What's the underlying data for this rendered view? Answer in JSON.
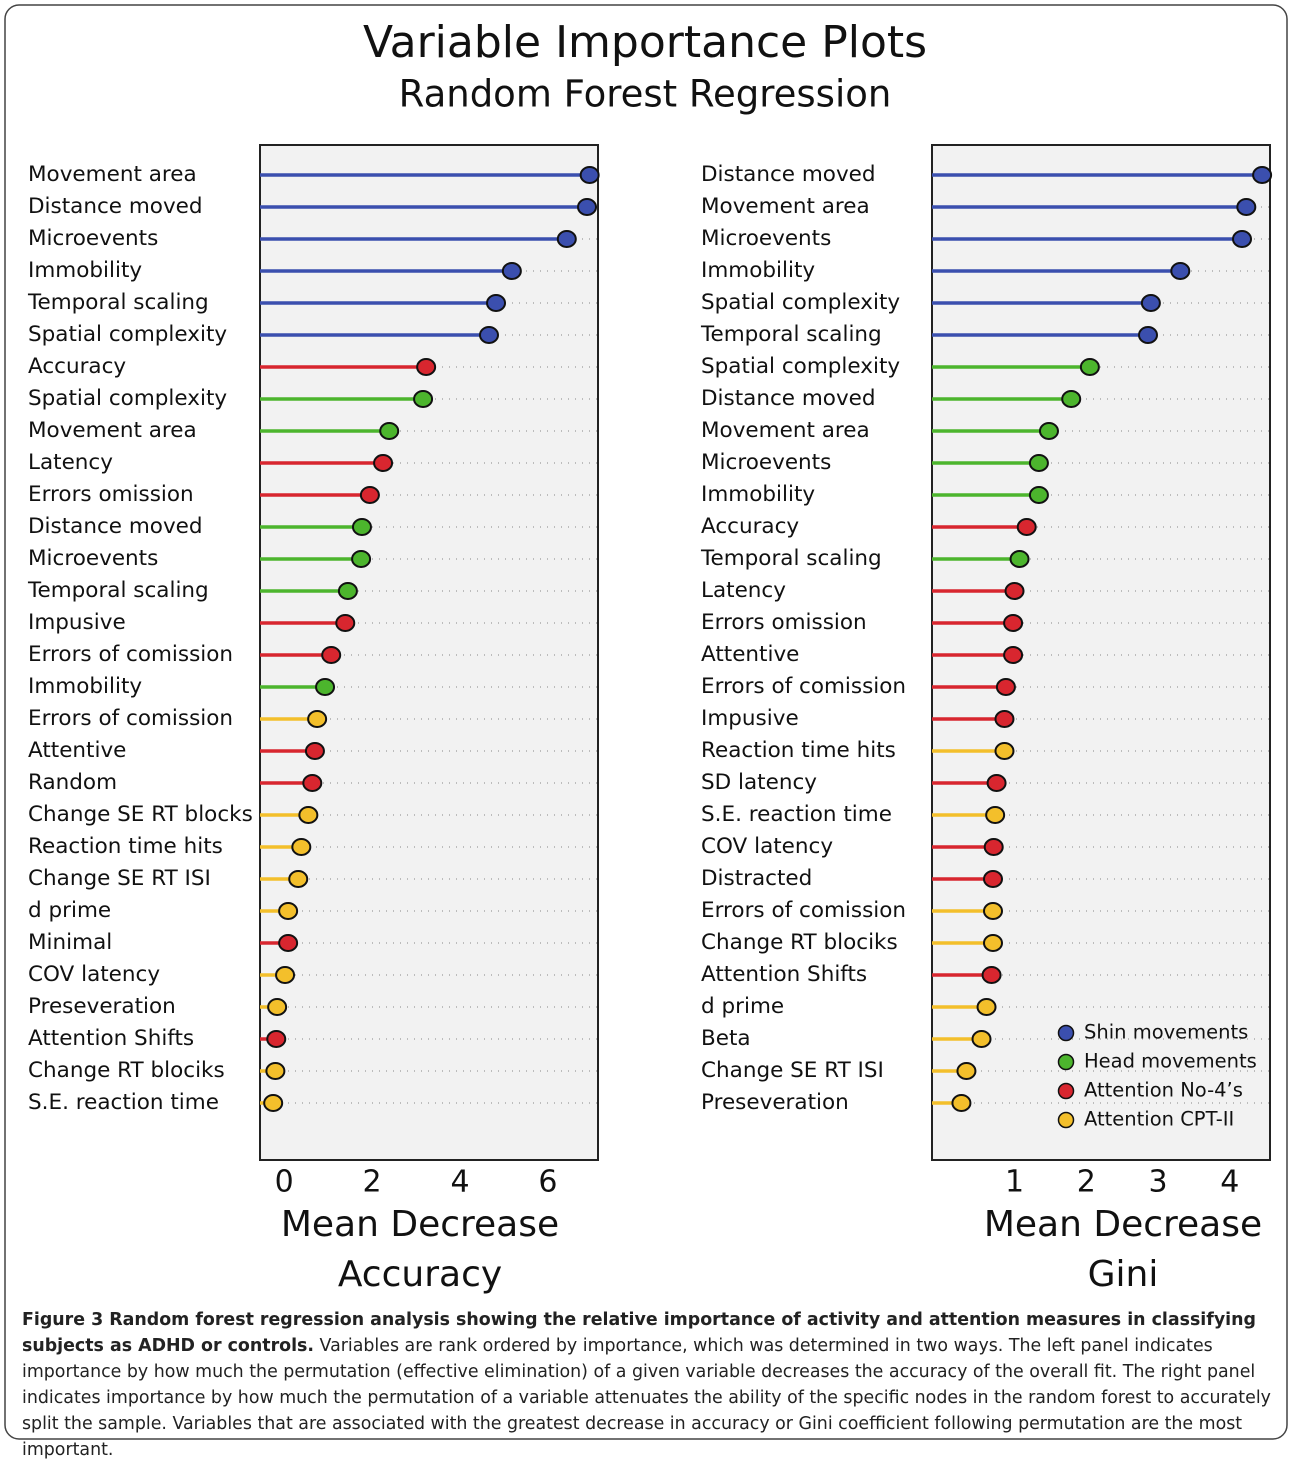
{
  "header": {
    "title": "Variable Importance Plots",
    "subtitle": "Random Forest Regression"
  },
  "chart_data": [
    {
      "type": "lollipop",
      "xlabel": "Mean Decrease Accuracy",
      "categories": [
        "Movement area",
        "Distance moved",
        "Microevents",
        "Immobility",
        "Temporal scaling",
        "Spatial complexity",
        "Accuracy",
        "Spatial complexity",
        "Movement area",
        "Latency",
        "Errors omission",
        "Distance moved",
        "Microevents",
        "Temporal scaling",
        "Impusive",
        "Errors of comission",
        "Immobility",
        "Errors of comission",
        "Attentive",
        "Random",
        "Change SE RT blocks",
        "Reaction time hits",
        "Change SE RT ISI",
        "d prime",
        "Minimal",
        "COV latency",
        "Preseveration",
        "Attention Shifts",
        "Change RT blociks",
        "S.E. reaction time"
      ],
      "series": [
        {
          "color": "#3b4fae",
          "values": [
            6.95,
            6.89,
            6.43,
            5.18,
            4.82,
            4.66,
            null,
            null,
            null,
            null,
            null,
            null,
            null,
            null,
            null,
            null,
            null,
            null,
            null,
            null,
            null,
            null,
            null,
            null,
            null,
            null,
            null,
            null,
            null,
            null
          ]
        },
        {
          "color": "#4cb52d",
          "values": [
            null,
            null,
            null,
            null,
            null,
            null,
            null,
            3.16,
            2.39,
            null,
            null,
            1.77,
            1.75,
            1.45,
            null,
            null,
            0.93,
            null,
            null,
            null,
            null,
            null,
            null,
            null,
            null,
            null,
            null,
            null,
            null,
            null
          ]
        },
        {
          "color": "#d8262f",
          "values": [
            null,
            null,
            null,
            null,
            null,
            null,
            3.23,
            null,
            null,
            2.25,
            1.95,
            null,
            null,
            null,
            1.39,
            1.07,
            null,
            null,
            0.7,
            0.64,
            null,
            null,
            null,
            null,
            0.09,
            null,
            null,
            -0.18,
            null,
            null
          ]
        },
        {
          "color": "#f3bf2b",
          "values": [
            null,
            null,
            null,
            null,
            null,
            null,
            null,
            null,
            null,
            null,
            null,
            null,
            null,
            null,
            null,
            null,
            null,
            0.75,
            null,
            null,
            0.55,
            0.39,
            0.32,
            0.09,
            null,
            0.02,
            -0.16,
            null,
            -0.2,
            -0.25
          ]
        }
      ],
      "xlim": [
        -0.55,
        7.14
      ],
      "xticks": [
        0,
        2,
        4,
        6
      ],
      "grid": true
    },
    {
      "type": "lollipop",
      "xlabel": "Mean Decrease Gini",
      "categories": [
        "Distance moved",
        "Movement area",
        "Microevents",
        "Immobility",
        "Spatial complexity",
        "Temporal scaling",
        "Spatial complexity",
        "Distance moved",
        "Movement area",
        "Microevents",
        "Immobility",
        "Accuracy",
        "Temporal scaling",
        "Latency",
        "Errors omission",
        "Attentive",
        "Errors of comission",
        "Impusive",
        "Reaction time hits",
        "SD latency",
        "S.E. reaction time",
        "COV latency",
        "Distracted",
        "Errors of comission",
        "Change RT blociks",
        "Attention Shifts",
        "d prime",
        "Beta",
        "Change SE RT ISI",
        "Preseveration"
      ],
      "series": [
        {
          "name": "Shin movements",
          "color": "#3b4fae",
          "values": [
            4.45,
            4.23,
            4.17,
            3.31,
            2.9,
            2.86,
            null,
            null,
            null,
            null,
            null,
            null,
            null,
            null,
            null,
            null,
            null,
            null,
            null,
            null,
            null,
            null,
            null,
            null,
            null,
            null,
            null,
            null,
            null,
            null
          ]
        },
        {
          "name": "Head movements",
          "color": "#4cb52d",
          "values": [
            null,
            null,
            null,
            null,
            null,
            null,
            2.05,
            1.79,
            1.48,
            1.34,
            1.34,
            null,
            1.07,
            null,
            null,
            null,
            null,
            null,
            null,
            null,
            null,
            null,
            null,
            null,
            null,
            null,
            null,
            null,
            null,
            null
          ]
        },
        {
          "name": "Attention No-4’s",
          "color": "#d8262f",
          "values": [
            null,
            null,
            null,
            null,
            null,
            null,
            null,
            null,
            null,
            null,
            null,
            1.17,
            null,
            1.0,
            0.98,
            0.98,
            0.88,
            0.86,
            null,
            0.75,
            null,
            0.71,
            0.7,
            null,
            null,
            0.68,
            null,
            null,
            null,
            null
          ]
        },
        {
          "name": "Attention CPT-II",
          "color": "#f3bf2b",
          "values": [
            null,
            null,
            null,
            null,
            null,
            null,
            null,
            null,
            null,
            null,
            null,
            null,
            null,
            null,
            null,
            null,
            null,
            null,
            0.86,
            null,
            0.73,
            null,
            null,
            0.7,
            0.7,
            null,
            0.61,
            0.54,
            0.33,
            0.26
          ]
        }
      ],
      "xlim": [
        -0.15,
        4.56
      ],
      "xticks": [
        1,
        2,
        3,
        4
      ],
      "grid": true,
      "legend": "bottom-right"
    }
  ],
  "caption": {
    "title": "Figure 3 Random forest regression analysis showing the relative importance of activity and attention measures in classifying subjects as ADHD or controls.",
    "text": "Variables are rank ordered by importance, which was determined in two ways. The left panel indicates importance by how much the permutation (effective elimination) of a given variable decreases the accuracy of the overall fit. The right panel indicates importance by how much the permutation of a variable attenuates the ability of the specific nodes in the random forest to accurately split the sample. Variables that are associated with the greatest decrease in accuracy or Gini coefficient following permutation are the most important."
  }
}
